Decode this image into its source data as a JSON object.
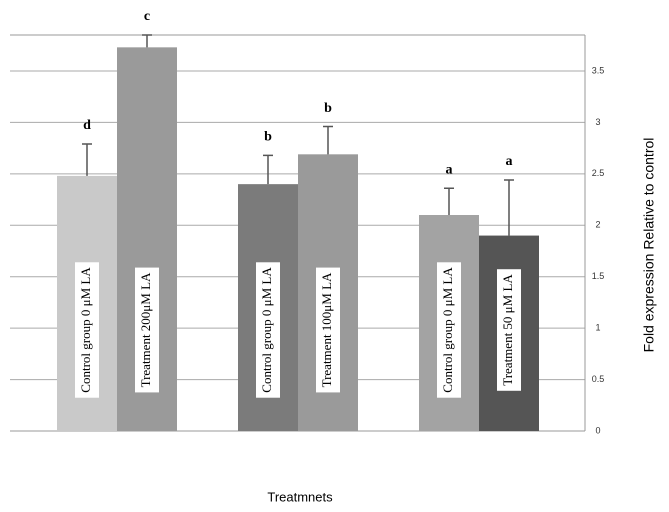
{
  "chart_data": {
    "type": "bar",
    "categories": [
      "Control group 0 μM LA",
      "Treatment   200μM LA",
      "Control group 0  μM LA",
      "Treatment  100μM LA",
      "Control group 0  μM LA",
      "Treatment   50 μM LA"
    ],
    "values": [
      2.48,
      3.73,
      2.4,
      2.69,
      2.1,
      1.9
    ],
    "errors": [
      0.31,
      0.12,
      0.28,
      0.27,
      0.26,
      0.54
    ],
    "letters": [
      "d",
      "c",
      "b",
      "b",
      "a",
      "a"
    ],
    "colors": [
      "#c9c9c9",
      "#9a9a9a",
      "#7b7b7b",
      "#9a9a9a",
      "#a3a3a3",
      "#555555"
    ],
    "ylim": [
      0,
      3.85
    ],
    "yticks": [
      0,
      0.5,
      1,
      1.5,
      2,
      2.5,
      3,
      3.5
    ],
    "xlabel": "Treatmnets",
    "ylabel": "Fold expression Relative to control",
    "grid": true
  }
}
